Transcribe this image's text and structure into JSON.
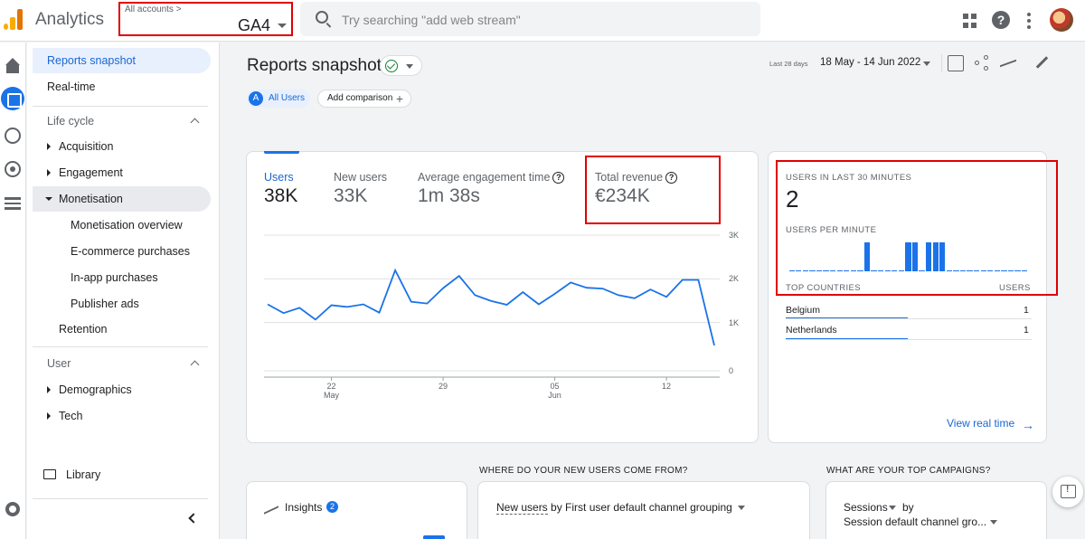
{
  "header": {
    "app_title": "Analytics",
    "account_crumb": "All accounts >",
    "account_name": "GA4",
    "search_placeholder": "Try searching \"add web stream\""
  },
  "sidebar": {
    "top_items": [
      "Reports snapshot",
      "Real-time"
    ],
    "life_cycle": {
      "heading": "Life cycle",
      "items": [
        "Acquisition",
        "Engagement",
        "Monetisation"
      ],
      "monetisation_children": [
        "Monetisation overview",
        "E-commerce purchases",
        "In-app purchases",
        "Publisher ads"
      ],
      "retention": "Retention"
    },
    "user": {
      "heading": "User",
      "items": [
        "Demographics",
        "Tech"
      ]
    },
    "library": "Library"
  },
  "page": {
    "title": "Reports snapshot",
    "segment_letter": "A",
    "segment_label": "All Users",
    "add_comparison": "Add comparison",
    "date_range_label": "Last 28 days",
    "date_range": "18 May - 14 Jun 2022"
  },
  "metrics": [
    {
      "label": "Users",
      "value": "38K"
    },
    {
      "label": "New users",
      "value": "33K"
    },
    {
      "label": "Average engagement time",
      "value": "1m 38s"
    },
    {
      "label": "Total revenue",
      "value": "€234K"
    }
  ],
  "chart_data": {
    "type": "line",
    "series": [
      {
        "values": [
          1520,
          1320,
          1440,
          1170,
          1500,
          1460,
          1520,
          1330,
          2300,
          1580,
          1540,
          1890,
          2170,
          1730,
          1600,
          1510,
          1800,
          1520,
          1760,
          2020,
          1900,
          1880,
          1730,
          1660,
          1860,
          1690,
          2080,
          2080,
          580
        ]
      }
    ],
    "x_ticks": [
      {
        "day": "22",
        "month": "May"
      },
      {
        "day": "29",
        "month": ""
      },
      {
        "day": "05",
        "month": "Jun"
      },
      {
        "day": "12",
        "month": ""
      }
    ],
    "y_ticks": [
      "3K",
      "2K",
      "1K",
      "0"
    ],
    "ylim": [
      0,
      3000
    ],
    "grid": true
  },
  "realtime": {
    "users_last_30_caption": "USERS IN LAST 30 MINUTES",
    "users_last_30_value": "2",
    "users_per_minute_caption": "USERS PER MINUTE",
    "per_minute_values": [
      0,
      0,
      0,
      0,
      0,
      0,
      0,
      0,
      0,
      0,
      0,
      1,
      0,
      0,
      0,
      0,
      0,
      1,
      1,
      0,
      1,
      1,
      1,
      0,
      0,
      0,
      0,
      0,
      0,
      0,
      0,
      0,
      0,
      0,
      0
    ],
    "top_countries_caption": "TOP COUNTRIES",
    "users_col_caption": "USERS",
    "countries": [
      {
        "name": "Belgium",
        "users": "1"
      },
      {
        "name": "Netherlands",
        "users": "1"
      }
    ],
    "view_link": "View real time"
  },
  "lower": {
    "insights_label": "Insights",
    "insights_count": "2",
    "new_users_heading": "WHERE DO YOUR NEW USERS COME FROM?",
    "new_users_metric": "New users",
    "new_users_dimension": "by First user default channel grouping",
    "campaigns_heading": "WHAT ARE YOUR TOP CAMPAIGNS?",
    "campaigns_metric": "Sessions",
    "campaigns_by": "by",
    "campaigns_dimension": "Session default channel gro..."
  }
}
